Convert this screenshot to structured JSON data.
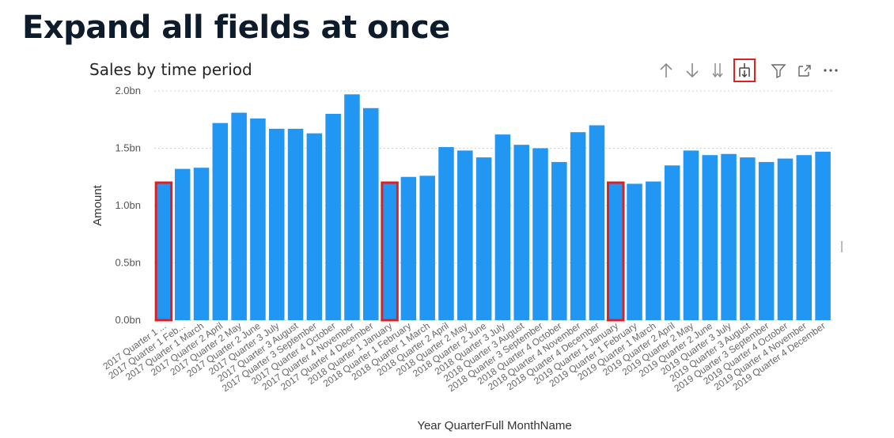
{
  "page": {
    "heading": "Expand all fields at once"
  },
  "visual": {
    "title": "Sales by time period",
    "toolbar": [
      {
        "icon": "arrow-up-icon",
        "action": "Drill up"
      },
      {
        "icon": "arrow-down-icon",
        "action": "Drill down"
      },
      {
        "icon": "double-arrow-down-icon",
        "action": "Go to next level"
      },
      {
        "icon": "expand-hierarchy-icon",
        "action": "Expand all down one level",
        "highlighted": true
      },
      {
        "icon": "filter-icon",
        "action": "Filter"
      },
      {
        "icon": "focus-mode-icon",
        "action": "Focus mode"
      },
      {
        "icon": "more-options-icon",
        "action": "More options"
      }
    ]
  },
  "chart_data": {
    "type": "bar",
    "title": "Sales by time period",
    "xlabel": "Year QuarterFull MonthName",
    "ylabel": "Amount",
    "ylim": [
      0,
      2.0
    ],
    "y_unit": "bn",
    "yticks": [
      "0.0bn",
      "0.5bn",
      "1.0bn",
      "1.5bn",
      "2.0bn"
    ],
    "grid": true,
    "bar_color": "#2196f3",
    "highlight_color": "#e02020",
    "categories": [
      "2017 Quarter 1 ...",
      "2017 Quarter 1 Feb...",
      "2017 Quarter 1 March",
      "2017 Quarter 2 April",
      "2017 Quarter 2 May",
      "2017 Quarter 2 June",
      "2017 Quarter 3 July",
      "2017 Quarter 3 August",
      "2017 Quarter 3 September",
      "2017 Quarter 4 October",
      "2017 Quarter 4 November",
      "2017 Quarter 4 December",
      "2018 Quarter 1 January",
      "2018 Quarter 1 February",
      "2018 Quarter 1 March",
      "2018 Quarter 2 April",
      "2018 Quarter 2 May",
      "2018 Quarter 2 June",
      "2018 Quarter 3 July",
      "2018 Quarter 3 August",
      "2018 Quarter 3 September",
      "2018 Quarter 4 October",
      "2018 Quarter 4 November",
      "2018 Quarter 4 December",
      "2019 Quarter 1 January",
      "2019 Quarter 1 February",
      "2019 Quarter 1 March",
      "2019 Quarter 2 April",
      "2019 Quarter 2 May",
      "2019 Quarter 2 June",
      "2019 Quarter 3 July",
      "2019 Quarter 3 August",
      "2019 Quarter 3 September",
      "2019 Quarter 4 October",
      "2019 Quarter 4 November",
      "2019 Quarter 4 December"
    ],
    "values": [
      1.2,
      1.32,
      1.33,
      1.72,
      1.81,
      1.76,
      1.67,
      1.67,
      1.63,
      1.8,
      1.97,
      1.85,
      1.2,
      1.25,
      1.26,
      1.51,
      1.48,
      1.42,
      1.62,
      1.53,
      1.5,
      1.38,
      1.64,
      1.7,
      1.2,
      1.19,
      1.21,
      1.35,
      1.48,
      1.44,
      1.45,
      1.42,
      1.38,
      1.41,
      1.44,
      1.47
    ],
    "highlighted_indices": [
      0,
      12,
      24
    ]
  }
}
